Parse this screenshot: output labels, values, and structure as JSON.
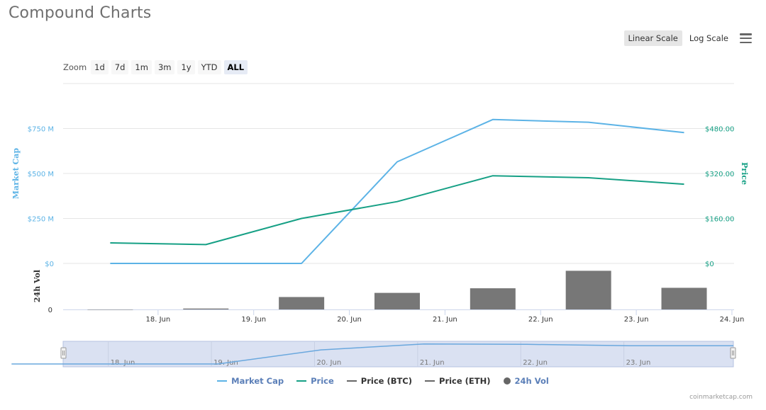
{
  "page": {
    "title": "Compound Charts"
  },
  "scale_buttons": {
    "linear": "Linear Scale",
    "log": "Log Scale"
  },
  "zoom": {
    "label": "Zoom",
    "buttons": [
      "1d",
      "7d",
      "1m",
      "3m",
      "1y",
      "YTD",
      "ALL"
    ],
    "active": "ALL"
  },
  "credit": "coinmarketcap.com",
  "colors": {
    "market_cap": "#5cb3e6",
    "price": "#16a085",
    "volume": "#777777",
    "btc": "#666666",
    "eth": "#666666",
    "navigator_fill": "#d3dcf0",
    "navigator_line": "#6aa8de"
  },
  "legend": [
    {
      "label": "Market Cap",
      "color": "#5b7fb8",
      "swatch": "#5cb3e6",
      "kind": "line"
    },
    {
      "label": "Price",
      "color": "#5b7fb8",
      "swatch": "#16a085",
      "kind": "line"
    },
    {
      "label": "Price (BTC)",
      "color": "#333333",
      "swatch": "#666666",
      "kind": "line"
    },
    {
      "label": "Price (ETH)",
      "color": "#333333",
      "swatch": "#666666",
      "kind": "line"
    },
    {
      "label": "24h Vol",
      "color": "#5b7fb8",
      "swatch": "#666666",
      "kind": "dot"
    }
  ],
  "chart_data": {
    "type": "line",
    "x": [
      "17.5 Jun",
      "18.5 Jun",
      "19.5 Jun",
      "20.5 Jun",
      "21.5 Jun",
      "22.5 Jun",
      "23.5 Jun"
    ],
    "x_ticks": [
      "18. Jun",
      "19. Jun",
      "20. Jun",
      "21. Jun",
      "22. Jun",
      "23. Jun",
      "24. Jun"
    ],
    "series": [
      {
        "name": "Market Cap",
        "axis": "left",
        "unit": "M USD",
        "values": [
          0,
          0,
          0,
          565,
          800,
          785,
          727
        ]
      },
      {
        "name": "Price",
        "axis": "right",
        "unit": "USD",
        "values": [
          73,
          67,
          160,
          220,
          312,
          305,
          282
        ]
      },
      {
        "name": "24h Vol",
        "axis": "volume",
        "values": [
          0,
          2,
          27,
          36,
          46,
          84,
          47
        ]
      }
    ],
    "left_axis": {
      "label": "Market Cap",
      "ticks": [
        "$0",
        "$250 M",
        "$500 M",
        "$750 M"
      ],
      "range": [
        0,
        1000
      ]
    },
    "right_axis": {
      "label": "Price",
      "ticks": [
        "$0",
        "$160.00",
        "$320.00",
        "$480.00"
      ],
      "range": [
        0,
        640
      ]
    },
    "volume_axis": {
      "label": "24h Vol",
      "ticks": [
        "0"
      ],
      "range": [
        0,
        100
      ]
    },
    "navigator_ticks": [
      "18. Jun",
      "19. Jun",
      "20. Jun",
      "21. Jun",
      "22. Jun",
      "23. Jun"
    ],
    "grid": true,
    "legend_position": "bottom"
  }
}
